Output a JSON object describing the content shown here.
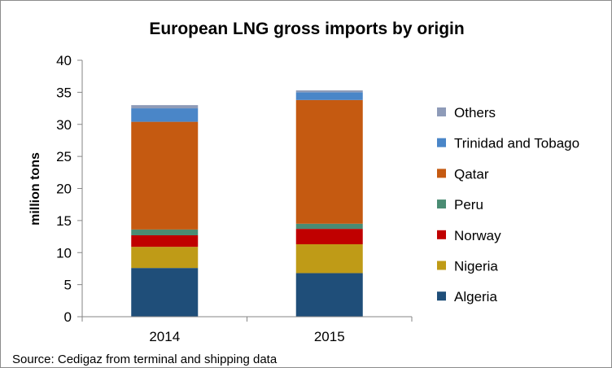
{
  "chart_data": {
    "type": "bar",
    "stacked": true,
    "title": "European LNG gross imports by origin",
    "xlabel": "",
    "ylabel": "million tons",
    "categories": [
      "2014",
      "2015"
    ],
    "ylim": [
      0,
      40
    ],
    "yticks": [
      0,
      5,
      10,
      15,
      20,
      25,
      30,
      35,
      40
    ],
    "grid": false,
    "legend_position": "right",
    "series": [
      {
        "name": "Algeria",
        "color": "#1f4e79",
        "values": [
          7.6,
          6.8
        ]
      },
      {
        "name": "Nigeria",
        "color": "#bf9b17",
        "values": [
          3.3,
          4.5
        ]
      },
      {
        "name": "Norway",
        "color": "#c00000",
        "values": [
          1.8,
          2.4
        ]
      },
      {
        "name": "Peru",
        "color": "#4a8c73",
        "values": [
          0.9,
          0.8
        ]
      },
      {
        "name": "Qatar",
        "color": "#c55a11",
        "values": [
          16.8,
          19.3
        ]
      },
      {
        "name": "Trinidad and Tobago",
        "color": "#4a86c8",
        "values": [
          2.1,
          1.2
        ]
      },
      {
        "name": "Others",
        "color": "#8e9bb8",
        "values": [
          0.5,
          0.3
        ]
      }
    ],
    "source": "Source: Cedigaz from terminal and shipping data"
  }
}
